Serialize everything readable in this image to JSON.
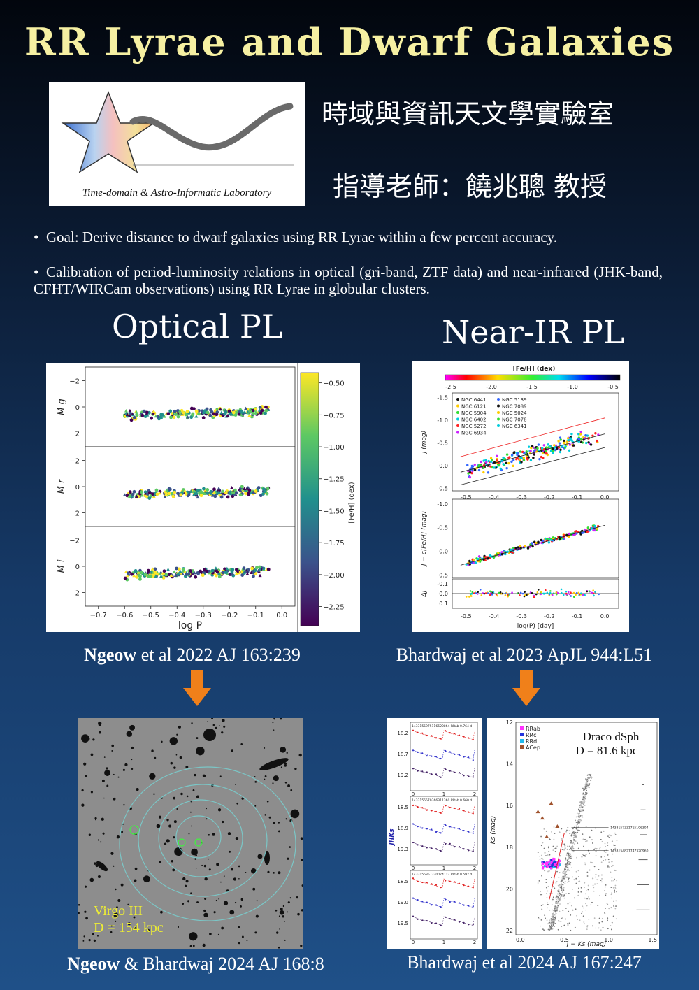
{
  "title": "RR Lyrae and Dwarf Galaxies",
  "logo": {
    "caption": "Time-domain & Astro-Informatic Laboratory"
  },
  "lab_name_cn": "時域與資訊天文學實驗室",
  "advisor": "指導老師：饒兆聰 教授",
  "bullets": [
    "Goal: Derive distance to dwarf galaxies using RR Lyrae within a few percent accuracy.",
    "Calibration of period-luminosity relations in optical (gri-band, ZTF data) and near-infrared (JHK-band, CFHT/WIRCam observations) using RR Lyrae in globular clusters."
  ],
  "sections": {
    "optical": "Optical PL",
    "nir": "Near-IR PL"
  },
  "optical_fig": {
    "panels": [
      "M_g",
      "M_r",
      "M_i"
    ],
    "yticks": [
      "−2",
      "0",
      "2"
    ],
    "xticks": [
      "−0.7",
      "−0.6",
      "−0.5",
      "−0.4",
      "−0.3",
      "−0.2",
      "−0.1",
      "0.0"
    ],
    "xlabel": "log P",
    "colorbar_label": "[Fe/H] (dex)",
    "colorbar_ticks": [
      "−0.50",
      "−0.75",
      "−1.00",
      "−1.25",
      "−1.50",
      "−1.75",
      "−2.00",
      "−2.25"
    ]
  },
  "nir_fig": {
    "colorbar_title": "[Fe/H] (dex)",
    "colorbar_ticks": [
      "-2.5",
      "-2.0",
      "-1.5",
      "-1.0",
      "-0.5"
    ],
    "legend": [
      "NGC 6441",
      "NGC 6121",
      "NGC 5904",
      "NGC 6402",
      "NGC 5272",
      "NGC 6934",
      "NGC 5139",
      "NGC 7089",
      "NGC 5024",
      "NGC 7078",
      "NGC 6341"
    ],
    "ylabel_top": "J (mag)",
    "ylabel_mid": "J − c[Fe/H] (mag)",
    "ylabel_bot": "ΔJ",
    "xlabel": "log(P) [day]",
    "xticks": [
      "-0.5",
      "-0.4",
      "-0.3",
      "-0.2",
      "-0.1",
      "0.0"
    ],
    "yticks_top": [
      "-1.5",
      "-1.0",
      "-0.5",
      "0.0",
      "0.5"
    ],
    "yticks_mid": [
      "-1.0",
      "-0.5",
      "0.0",
      "0.5"
    ],
    "yticks_bot": [
      "0.1",
      "0.0",
      "-0.1"
    ]
  },
  "citations": {
    "c1_author": "Ngeow",
    "c1_rest": " et al 2022 AJ 163:239",
    "c2": "Bhardwaj et al 2023 ApJL 944:L51",
    "c3_author": "Ngeow",
    "c3_rest": " & Bhardwaj 2024 AJ 168:8",
    "c4": "Bhardwaj et al 2024 AJ 167:247"
  },
  "virgo": {
    "name": "Virgo III",
    "distance": "D = 154 kpc"
  },
  "lightcurves": {
    "ylabel": "JHKs",
    "headers": [
      "1433155975116520864  RRab  0.764 d",
      "1433155579366311360  RRab  0.660 d",
      "1433155357320074112  RRab  0.592 d"
    ],
    "yticks": [
      [
        "18.2",
        "18.7",
        "19.2"
      ],
      [
        "18.5",
        "18.9",
        "19.3"
      ],
      [
        "18.5",
        "19.0",
        "19.5"
      ]
    ],
    "xticks": [
      "0",
      "1",
      "2"
    ]
  },
  "cmd": {
    "title": "Draco dSph",
    "distance": "D = 81.6 kpc",
    "legend": [
      "RRab",
      "RRc",
      "RRd",
      "ACep"
    ],
    "ylabel": "Ks (mag)",
    "xlabel": "J − Ks (mag)",
    "yticks": [
      "12",
      "14",
      "16",
      "18",
      "20",
      "22"
    ],
    "xticks": [
      "0.0",
      "0.5",
      "1.0",
      "1.5"
    ],
    "annotations": [
      "1433157331715106304",
      "1433154827747320960"
    ]
  },
  "colors": {
    "title": "#f6f0a2",
    "arrow": "#f0801a"
  }
}
